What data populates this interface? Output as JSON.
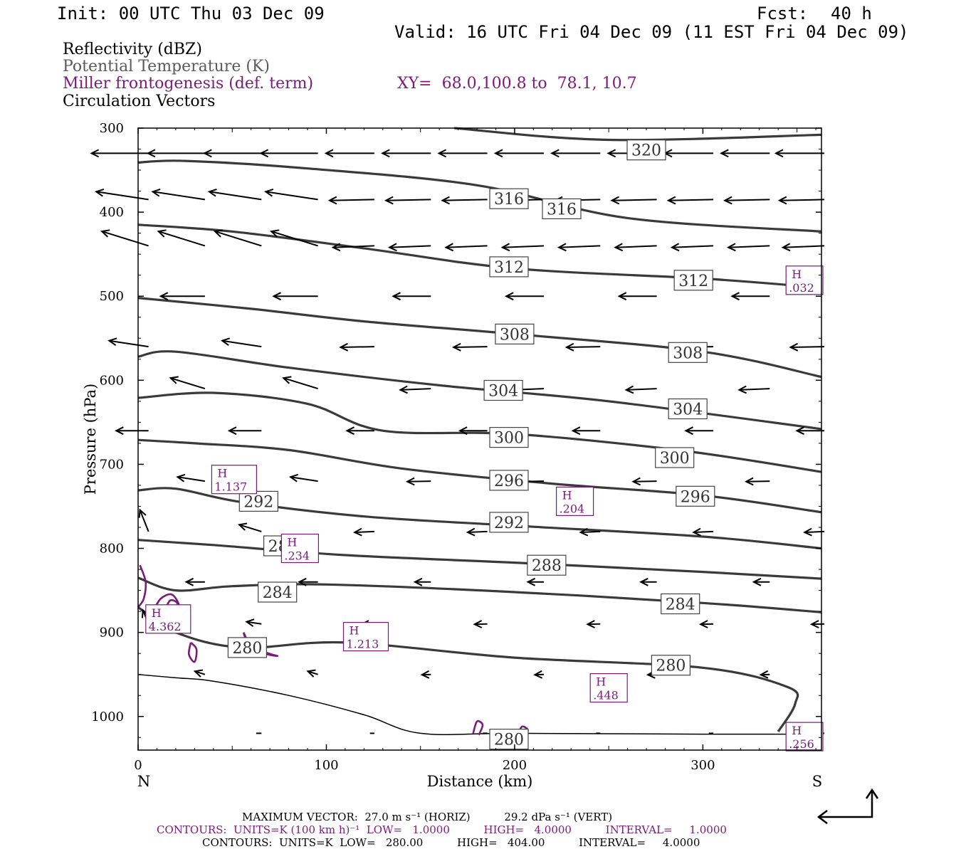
{
  "header": {
    "init": "Init: 00 UTC Thu 03 Dec 09",
    "fcst_label": "Fcst:",
    "fcst_value": "40 h",
    "valid": "Valid: 16 UTC Fri 04 Dec 09 (11 EST Fri 04 Dec 09)"
  },
  "legend": {
    "field1": "Reflectivity (dBZ)",
    "field2": "Potential Temperature (K)",
    "field3": "Miller frontogenesis (def. term)",
    "xy": "XY=  68.0,100.8 to  78.1, 10.7",
    "field4": "Circulation Vectors"
  },
  "footer": {
    "vector_line": "MAXIMUM VECTOR:  27.0 m s⁻¹ (HORIZ)          29.2 dPa s⁻¹ (VERT)",
    "contours_fronto": "CONTOURS:  UNITS=K (100 km h)⁻¹  LOW=   1.0000          HIGH=   4.0000          INTERVAL=     1.0000",
    "contours_theta": "CONTOURS:  UNITS=K  LOW=   280.00          HIGH=   404.00          INTERVAL=     4.0000"
  },
  "colors": {
    "theta": "#3a3a3a",
    "fronto": "#7a1a7a",
    "vectors": "#000000"
  },
  "chart_data": {
    "type": "cross-section",
    "xlabel": "Distance (km)",
    "ylabel": "Pressure (hPa)",
    "xlim": [
      0,
      363
    ],
    "ylim": [
      1040,
      300
    ],
    "x_ticks": [
      0,
      100,
      200,
      300
    ],
    "y_ticks": [
      300,
      400,
      500,
      600,
      700,
      800,
      900,
      1000
    ],
    "endpoints": {
      "left": "N",
      "right": "S"
    },
    "theta_contours": [
      {
        "value": 320,
        "points": [
          [
            168,
            300
          ],
          [
            250,
            314
          ],
          [
            363,
            308
          ]
        ],
        "labels": [
          [
            270,
            326
          ]
        ]
      },
      {
        "value": 316,
        "points": [
          [
            0,
            341
          ],
          [
            25,
            339
          ],
          [
            90,
            348
          ],
          [
            180,
            368
          ],
          [
            260,
            407
          ],
          [
            363,
            423
          ]
        ],
        "labels": [
          [
            197,
            384
          ],
          [
            225,
            396
          ]
        ]
      },
      {
        "value": 312,
        "points": [
          [
            0,
            415
          ],
          [
            50,
            423
          ],
          [
            120,
            443
          ],
          [
            200,
            467
          ],
          [
            300,
            479
          ],
          [
            363,
            490
          ]
        ],
        "labels": [
          [
            197,
            465
          ],
          [
            295,
            481
          ]
        ]
      },
      {
        "value": 308,
        "points": [
          [
            0,
            502
          ],
          [
            60,
            515
          ],
          [
            120,
            530
          ],
          [
            200,
            545
          ],
          [
            300,
            566
          ],
          [
            363,
            596
          ]
        ],
        "labels": [
          [
            200,
            545
          ],
          [
            292,
            567
          ]
        ]
      },
      {
        "value": 304,
        "points": [
          [
            0,
            572
          ],
          [
            20,
            566
          ],
          [
            80,
            585
          ],
          [
            160,
            606
          ],
          [
            250,
            625
          ],
          [
            363,
            658
          ]
        ],
        "labels": [
          [
            194,
            612
          ],
          [
            292,
            634
          ]
        ]
      },
      {
        "value": 300,
        "points": [
          [
            0,
            621
          ],
          [
            40,
            615
          ],
          [
            90,
            628
          ],
          [
            130,
            660
          ],
          [
            200,
            664
          ],
          [
            290,
            684
          ],
          [
            363,
            709
          ]
        ],
        "labels": [
          [
            197,
            668
          ],
          [
            285,
            692
          ]
        ]
      },
      {
        "value": 296,
        "points": [
          [
            0,
            671
          ],
          [
            30,
            675
          ],
          [
            80,
            683
          ],
          [
            140,
            705
          ],
          [
            220,
            723
          ],
          [
            300,
            737
          ],
          [
            363,
            757
          ]
        ],
        "labels": [
          [
            197,
            719
          ],
          [
            296,
            738
          ]
        ]
      },
      {
        "value": 292,
        "points": [
          [
            0,
            731
          ],
          [
            20,
            729
          ],
          [
            55,
            745
          ],
          [
            120,
            762
          ],
          [
            200,
            773
          ],
          [
            300,
            786
          ],
          [
            363,
            800
          ]
        ],
        "labels": [
          [
            64,
            744
          ],
          [
            197,
            769
          ]
        ]
      },
      {
        "value": 288,
        "points": [
          [
            0,
            790
          ],
          [
            40,
            796
          ],
          [
            110,
            808
          ],
          [
            200,
            817
          ],
          [
            300,
            828
          ],
          [
            363,
            836
          ]
        ],
        "labels": [
          [
            77,
            797
          ],
          [
            217,
            820
          ]
        ]
      },
      {
        "value": 284,
        "points": [
          [
            0,
            835
          ],
          [
            20,
            850
          ],
          [
            50,
            845
          ],
          [
            100,
            843
          ],
          [
            200,
            852
          ],
          [
            300,
            865
          ],
          [
            363,
            876
          ]
        ],
        "labels": [
          [
            74,
            852
          ],
          [
            288,
            866
          ]
        ]
      },
      {
        "value": 280,
        "points": [
          [
            0,
            870
          ],
          [
            20,
            900
          ],
          [
            55,
            918
          ],
          [
            110,
            912
          ],
          [
            200,
            930
          ],
          [
            300,
            942
          ],
          [
            345,
            965
          ],
          [
            349,
            985
          ],
          [
            340,
            1018
          ]
        ],
        "labels": [
          [
            58,
            918
          ],
          [
            283,
            939
          ],
          [
            197,
            1027
          ]
        ]
      }
    ],
    "fronto_maxima": [
      {
        "label": "H",
        "value": "4.362",
        "x": 16,
        "y": 884
      },
      {
        "label": "H",
        "value": "1.137",
        "x": 51,
        "y": 718
      },
      {
        "label": "H",
        "value": ".234",
        "x": 86,
        "y": 800
      },
      {
        "label": "H",
        "value": "1.213",
        "x": 121,
        "y": 905
      },
      {
        "label": "H",
        "value": ".204",
        "x": 232,
        "y": 744
      },
      {
        "label": "H",
        "value": ".448",
        "x": 250,
        "y": 966
      },
      {
        "label": "H",
        "value": ".032",
        "x": 354,
        "y": 481
      },
      {
        "label": "H",
        "value": ".256",
        "x": 354,
        "y": 1024
      }
    ]
  }
}
